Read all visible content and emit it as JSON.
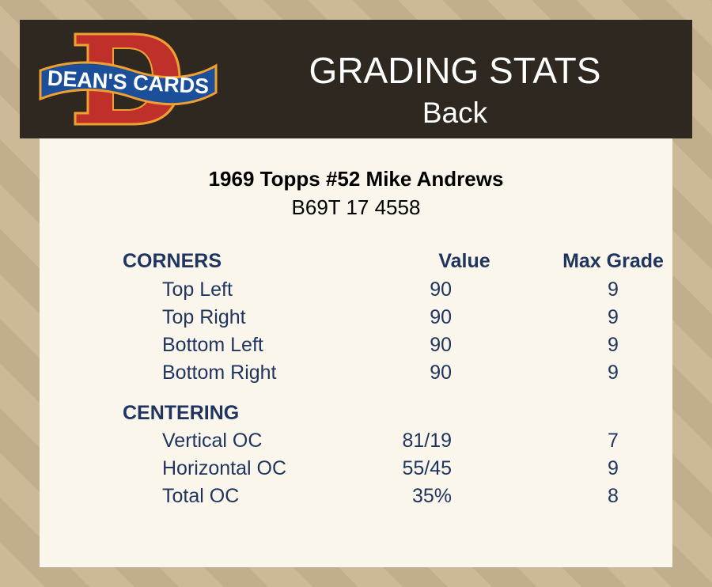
{
  "header": {
    "logo_text": "DEAN'S CARDS",
    "title": "GRADING STATS",
    "subtitle": "Back"
  },
  "card": {
    "title": "1969 Topps #52 Mike Andrews",
    "code": "B69T 17 4558"
  },
  "table": {
    "corners": {
      "heading": "CORNERS",
      "value_header": "Value",
      "max_header": "Max Grade",
      "rows": [
        {
          "label": "Top Left",
          "value": "90",
          "max": "9"
        },
        {
          "label": "Top Right",
          "value": "90",
          "max": "9"
        },
        {
          "label": "Bottom Left",
          "value": "90",
          "max": "9"
        },
        {
          "label": "Bottom Right",
          "value": "90",
          "max": "9"
        }
      ]
    },
    "centering": {
      "heading": "CENTERING",
      "rows": [
        {
          "label": "Vertical OC",
          "value": "81/19",
          "max": "7"
        },
        {
          "label": "Horizontal OC",
          "value": "55/45",
          "max": "9"
        },
        {
          "label": "Total OC",
          "value": "35%",
          "max": "8"
        }
      ]
    }
  },
  "colors": {
    "text": "#1f3560",
    "header_bg": "#2e2820",
    "card_bg": "#fbf6ec"
  }
}
